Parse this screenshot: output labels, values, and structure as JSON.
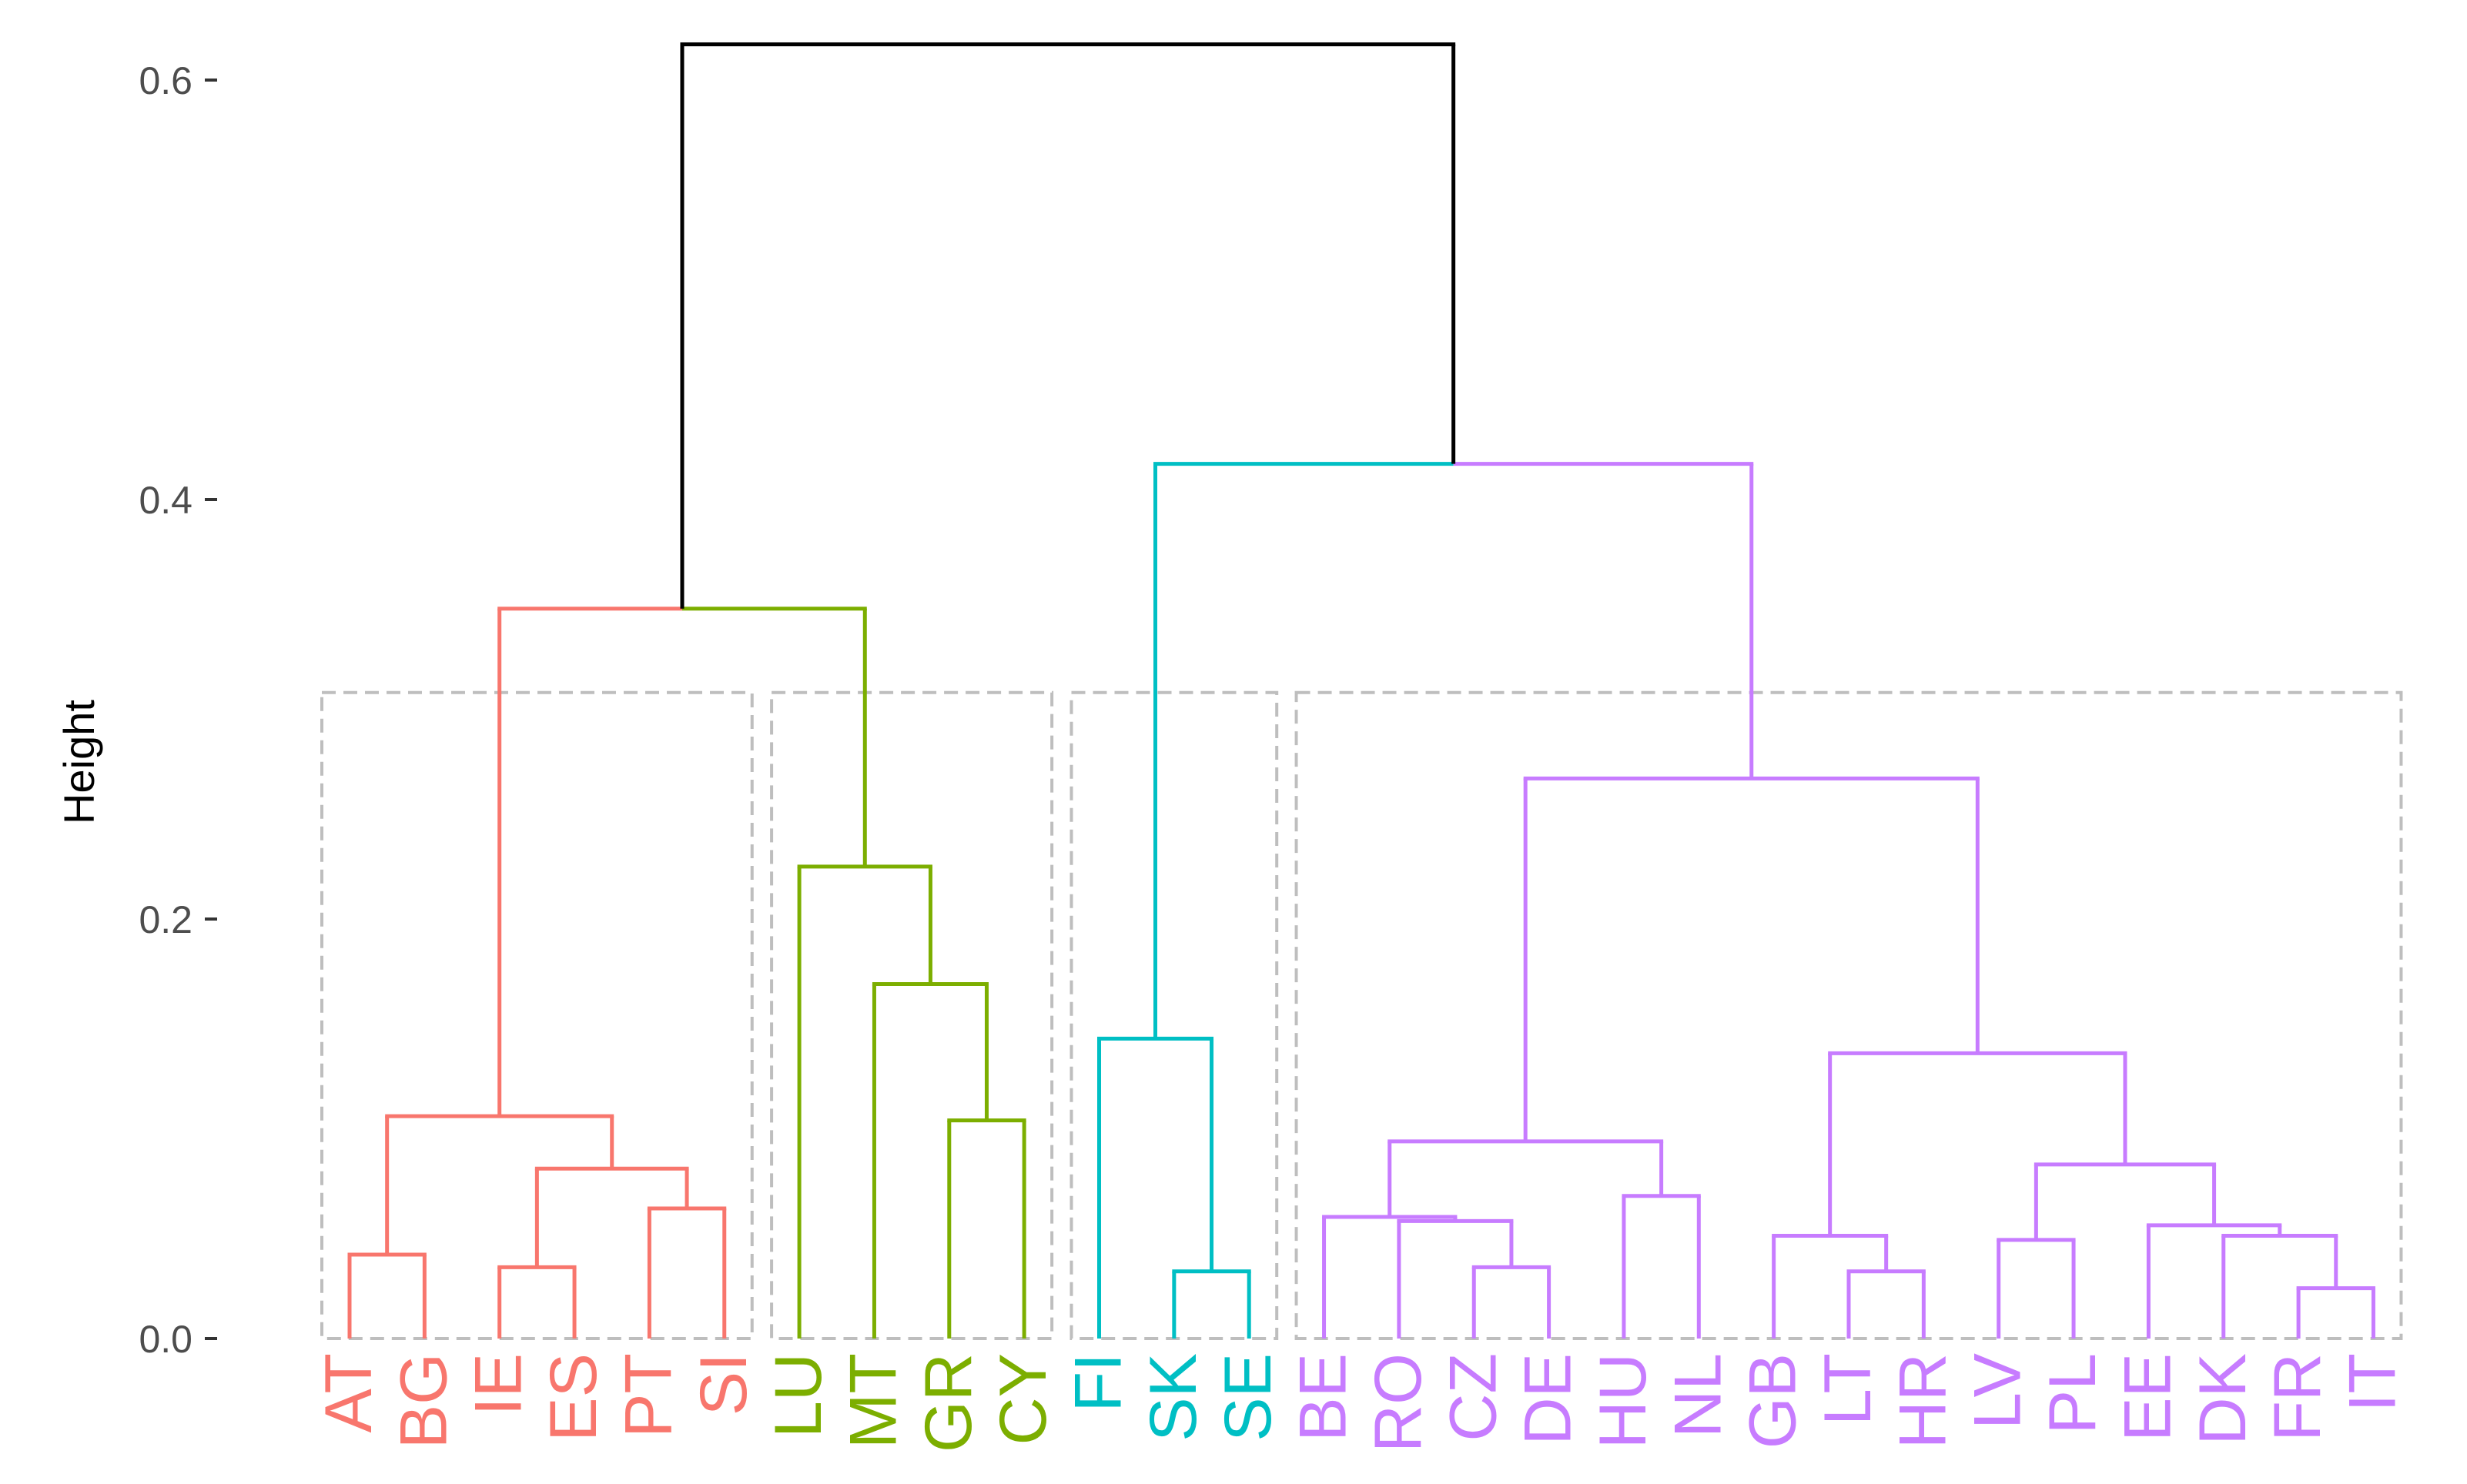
{
  "chart_data": {
    "type": "dendrogram",
    "ylabel": "Height",
    "ylim": [
      0,
      0.6
    ],
    "yticks": [
      "0.0",
      "0.2",
      "0.4",
      "0.6"
    ],
    "grid": false,
    "leaves": [
      {
        "label": "AT",
        "cluster": 0
      },
      {
        "label": "BG",
        "cluster": 0
      },
      {
        "label": "IE",
        "cluster": 0
      },
      {
        "label": "ES",
        "cluster": 0
      },
      {
        "label": "PT",
        "cluster": 0
      },
      {
        "label": "SI",
        "cluster": 0
      },
      {
        "label": "LU",
        "cluster": 1
      },
      {
        "label": "MT",
        "cluster": 1
      },
      {
        "label": "GR",
        "cluster": 1
      },
      {
        "label": "CY",
        "cluster": 1
      },
      {
        "label": "FI",
        "cluster": 2
      },
      {
        "label": "SK",
        "cluster": 2
      },
      {
        "label": "SE",
        "cluster": 2
      },
      {
        "label": "BE",
        "cluster": 3
      },
      {
        "label": "RO",
        "cluster": 3
      },
      {
        "label": "CZ",
        "cluster": 3
      },
      {
        "label": "DE",
        "cluster": 3
      },
      {
        "label": "HU",
        "cluster": 3
      },
      {
        "label": "NL",
        "cluster": 3
      },
      {
        "label": "GB",
        "cluster": 3
      },
      {
        "label": "LT",
        "cluster": 3
      },
      {
        "label": "HR",
        "cluster": 3
      },
      {
        "label": "LV",
        "cluster": 3
      },
      {
        "label": "PL",
        "cluster": 3
      },
      {
        "label": "EE",
        "cluster": 3
      },
      {
        "label": "DK",
        "cluster": 3
      },
      {
        "label": "FR",
        "cluster": 3
      },
      {
        "label": "IT",
        "cluster": 3
      }
    ],
    "cluster_colors": [
      "#F8766D",
      "#7CAE00",
      "#00BFC4",
      "#C77CFF"
    ],
    "root_color": "#000000",
    "rect_color": "#BEBEBE",
    "rect_height": 0.308,
    "merges": [
      {
        "a": "AT",
        "b": "BG",
        "height": 0.04
      },
      {
        "a": "IE",
        "b": "ES",
        "height": 0.034
      },
      {
        "a": "PT",
        "b": "SI",
        "height": 0.062
      },
      {
        "a": "IE-ES",
        "b": "PT-SI",
        "height": 0.081
      },
      {
        "a": "AT-BG",
        "b": "IE-ES-PT-SI",
        "height": 0.106
      },
      {
        "a": "GR",
        "b": "CY",
        "height": 0.104
      },
      {
        "a": "MT",
        "b": "GR-CY",
        "height": 0.169
      },
      {
        "a": "LU",
        "b": "MT-GR-CY",
        "height": 0.225
      },
      {
        "a": "AT..SI",
        "b": "LU..CY",
        "height": 0.348
      },
      {
        "a": "SK",
        "b": "SE",
        "height": 0.032
      },
      {
        "a": "FI",
        "b": "SK-SE",
        "height": 0.143
      },
      {
        "a": "CZ",
        "b": "DE",
        "height": 0.034
      },
      {
        "a": "RO",
        "b": "CZ-DE",
        "height": 0.056
      },
      {
        "a": "BE",
        "b": "RO-CZ-DE",
        "height": 0.058
      },
      {
        "a": "HU",
        "b": "NL",
        "height": 0.068
      },
      {
        "a": "BE..DE",
        "b": "HU-NL",
        "height": 0.094
      },
      {
        "a": "LT",
        "b": "HR",
        "height": 0.032
      },
      {
        "a": "GB",
        "b": "LT-HR",
        "height": 0.049
      },
      {
        "a": "LV",
        "b": "PL",
        "height": 0.047
      },
      {
        "a": "FR",
        "b": "IT",
        "height": 0.024
      },
      {
        "a": "DK",
        "b": "FR-IT",
        "height": 0.049
      },
      {
        "a": "EE",
        "b": "DK-FR-IT",
        "height": 0.054
      },
      {
        "a": "LV-PL",
        "b": "EE..IT",
        "height": 0.083
      },
      {
        "a": "GB-LT-HR",
        "b": "LV..IT",
        "height": 0.136
      },
      {
        "a": "BE..NL",
        "b": "GB..IT",
        "height": 0.267
      },
      {
        "a": "FI-SK-SE",
        "b": "BE..IT",
        "height": 0.417
      },
      {
        "a": "AT..CY",
        "b": "FI..IT",
        "height": 0.617
      }
    ]
  }
}
